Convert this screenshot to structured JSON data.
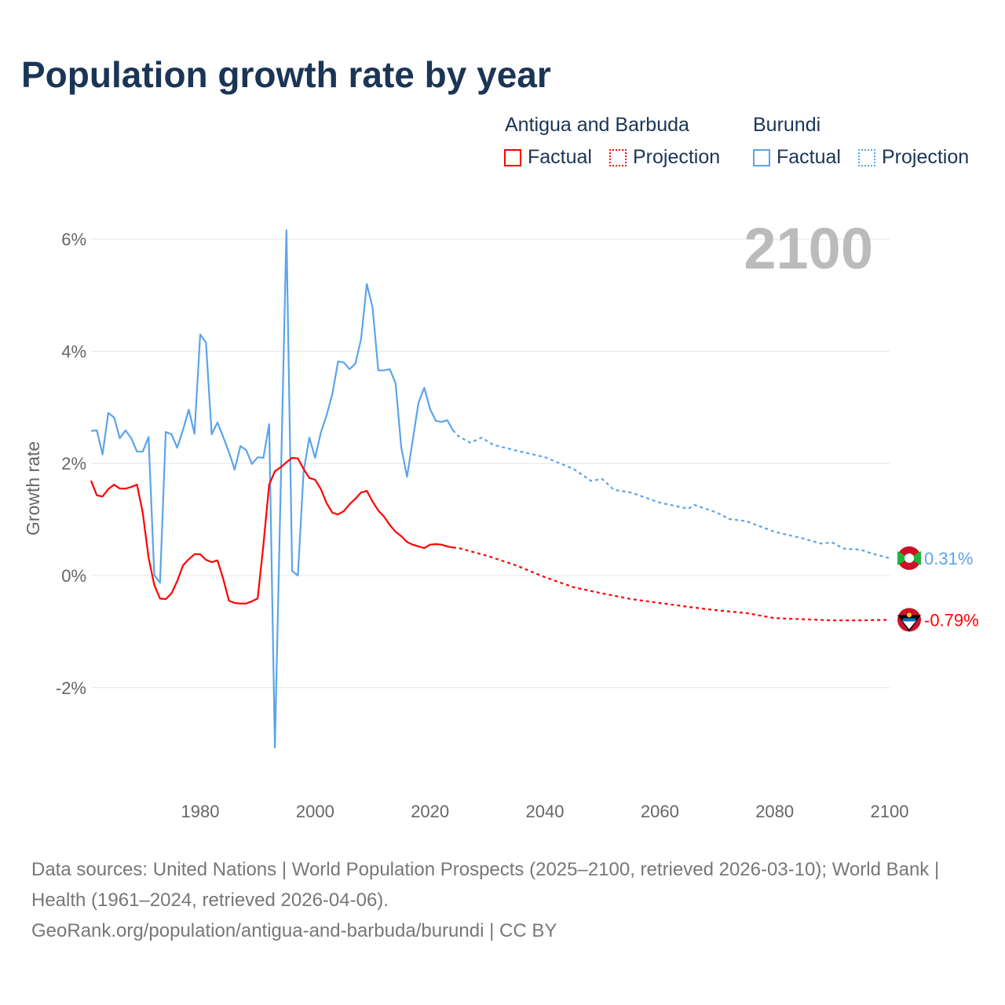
{
  "title": "Population growth rate by year",
  "legend": {
    "groups": [
      {
        "name": "Antigua and Barbuda",
        "color": "#ff0000",
        "factual": "Factual",
        "projection": "Projection"
      },
      {
        "name": "Burundi",
        "color": "#5ba4ea",
        "factual": "Factual",
        "projection": "Projection"
      }
    ]
  },
  "year_label": "2100",
  "source": {
    "line1": "Data sources: United Nations | World Population Prospects (2025–2100, retrieved 2026-03-10); World Bank | Health (1961–2024, retrieved 2026-04-06).",
    "line2": "GeoRank.org/population/antigua-and-barbuda/burundi | CC BY"
  },
  "chart_data": {
    "type": "line",
    "title": "Population growth rate by year",
    "xlabel": "",
    "ylabel": "Growth rate",
    "xlim": [
      1961,
      2100
    ],
    "ylim": [
      -3.1,
      6.2
    ],
    "xticks": [
      1980,
      2000,
      2020,
      2040,
      2060,
      2080,
      2100
    ],
    "xtick_labels": [
      "1980",
      "2000",
      "2020",
      "2040",
      "2060",
      "2080",
      "2100"
    ],
    "yticks": [
      -2,
      0,
      2,
      4,
      6
    ],
    "ytick_labels": [
      "-2%",
      "0%",
      "2%",
      "4%",
      "6%"
    ],
    "grid": true,
    "legend_position": "top-right",
    "series": [
      {
        "name": "Burundi",
        "color": "#5ba4ea",
        "end_label": "0.31%",
        "factual_x": [
          1961,
          1962,
          1963,
          1964,
          1965,
          1966,
          1967,
          1968,
          1969,
          1970,
          1971,
          1972,
          1973,
          1974,
          1975,
          1976,
          1977,
          1978,
          1979,
          1980,
          1981,
          1982,
          1983,
          1984,
          1985,
          1986,
          1987,
          1988,
          1989,
          1990,
          1991,
          1992,
          1993,
          1994,
          1995,
          1996,
          1997,
          1998,
          1999,
          2000,
          2001,
          2002,
          2003,
          2004,
          2005,
          2006,
          2007,
          2008,
          2009,
          2010,
          2011,
          2012,
          2013,
          2014,
          2015,
          2016,
          2017,
          2018,
          2019,
          2020,
          2021,
          2022,
          2023,
          2024
        ],
        "factual_y": [
          2.58,
          2.59,
          2.16,
          2.9,
          2.82,
          2.45,
          2.59,
          2.45,
          2.21,
          2.21,
          2.47,
          0.01,
          -0.13,
          2.56,
          2.52,
          2.28,
          2.6,
          2.96,
          2.53,
          4.3,
          4.16,
          2.52,
          2.73,
          2.47,
          2.2,
          1.89,
          2.31,
          2.24,
          1.99,
          2.11,
          2.1,
          2.7,
          -3.07,
          1.5,
          6.16,
          0.08,
          0.0,
          1.86,
          2.46,
          2.1,
          2.55,
          2.86,
          3.24,
          3.82,
          3.8,
          3.68,
          3.78,
          4.22,
          5.2,
          4.78,
          3.66,
          3.66,
          3.68,
          3.43,
          2.28,
          1.76,
          2.42,
          3.08,
          3.35,
          2.97,
          2.76,
          2.74,
          2.77,
          2.59
        ],
        "projection_x": [
          2024,
          2025,
          2027,
          2029,
          2031,
          2035,
          2040,
          2045,
          2048,
          2050,
          2052,
          2055,
          2060,
          2065,
          2066,
          2070,
          2072,
          2075,
          2080,
          2085,
          2088,
          2090,
          2092,
          2095,
          2097,
          2100
        ],
        "projection_y": [
          2.59,
          2.48,
          2.37,
          2.46,
          2.33,
          2.23,
          2.11,
          1.9,
          1.69,
          1.72,
          1.53,
          1.48,
          1.3,
          1.19,
          1.26,
          1.12,
          1.01,
          0.97,
          0.78,
          0.66,
          0.57,
          0.59,
          0.48,
          0.46,
          0.39,
          0.31
        ]
      },
      {
        "name": "Antigua and Barbuda",
        "color": "#ff0000",
        "end_label": "-0.79%",
        "factual_x": [
          1961,
          1962,
          1963,
          1964,
          1965,
          1966,
          1967,
          1968,
          1969,
          1970,
          1971,
          1972,
          1973,
          1974,
          1975,
          1976,
          1977,
          1978,
          1979,
          1980,
          1981,
          1982,
          1983,
          1984,
          1985,
          1986,
          1987,
          1988,
          1989,
          1990,
          1991,
          1992,
          1993,
          1994,
          1995,
          1996,
          1997,
          1998,
          1999,
          2000,
          2001,
          2002,
          2003,
          2004,
          2005,
          2006,
          2007,
          2008,
          2009,
          2010,
          2011,
          2012,
          2013,
          2014,
          2015,
          2016,
          2017,
          2018,
          2019,
          2020,
          2021,
          2022,
          2023,
          2024
        ],
        "factual_y": [
          1.69,
          1.43,
          1.41,
          1.54,
          1.62,
          1.55,
          1.55,
          1.58,
          1.62,
          1.12,
          0.32,
          -0.17,
          -0.41,
          -0.42,
          -0.32,
          -0.1,
          0.18,
          0.29,
          0.38,
          0.38,
          0.28,
          0.24,
          0.27,
          -0.06,
          -0.45,
          -0.49,
          -0.5,
          -0.5,
          -0.46,
          -0.41,
          0.55,
          1.62,
          1.86,
          1.93,
          2.02,
          2.1,
          2.09,
          1.9,
          1.74,
          1.71,
          1.54,
          1.29,
          1.12,
          1.09,
          1.15,
          1.27,
          1.37,
          1.48,
          1.51,
          1.32,
          1.16,
          1.05,
          0.9,
          0.78,
          0.7,
          0.6,
          0.55,
          0.52,
          0.49,
          0.55,
          0.56,
          0.55,
          0.52,
          0.5
        ],
        "projection_x": [
          2024,
          2025,
          2030,
          2035,
          2040,
          2045,
          2050,
          2055,
          2060,
          2065,
          2070,
          2075,
          2080,
          2085,
          2090,
          2095,
          2100
        ],
        "projection_y": [
          0.5,
          0.49,
          0.35,
          0.18,
          -0.03,
          -0.21,
          -0.32,
          -0.42,
          -0.49,
          -0.56,
          -0.62,
          -0.67,
          -0.76,
          -0.78,
          -0.8,
          -0.8,
          -0.79
        ]
      }
    ]
  }
}
